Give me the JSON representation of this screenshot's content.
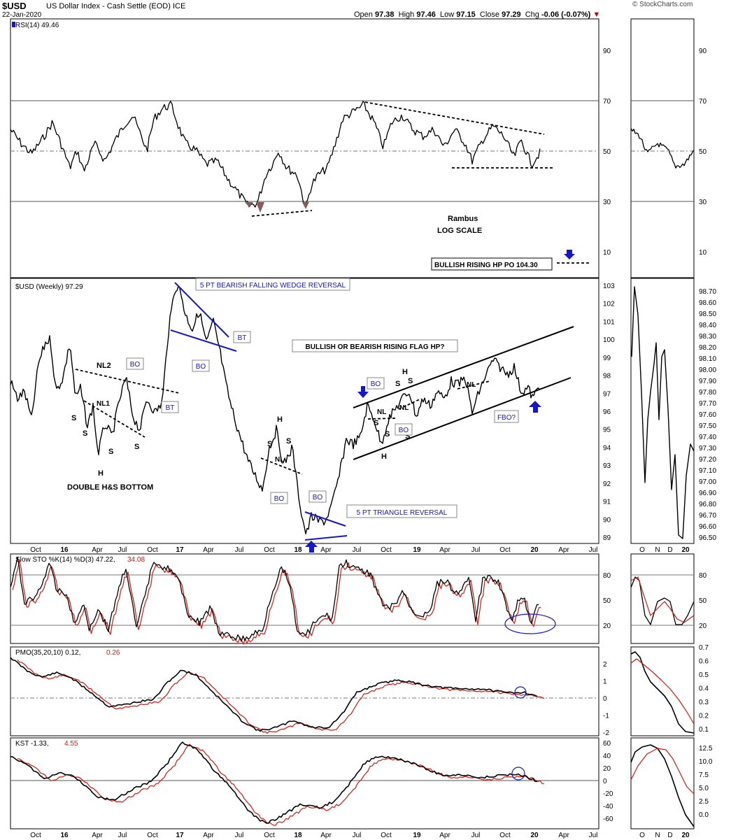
{
  "header": {
    "symbol": "$USD",
    "name": "US Dollar Index - Cash Settle (EOD) ICE",
    "date": "22-Jan-2020",
    "open": "97.38",
    "high": "97.46",
    "low": "97.15",
    "close": "97.29",
    "change": "-0.06 (-0.07%)",
    "brand": "© StockCharts.com"
  },
  "labels": {
    "open": "Open",
    "high": "High",
    "low": "Low",
    "close": "Close",
    "chg": "Chg"
  },
  "colors": {
    "price": "#000000",
    "signal": "#e0150f",
    "annotation_blue": "#1515d6",
    "grid": "#999999"
  },
  "main_x_ticks": [
    "Oct",
    "16",
    "Apr",
    "Jul",
    "Oct",
    "17",
    "Apr",
    "Jul",
    "Oct",
    "18",
    "Apr",
    "Jul",
    "Oct",
    "19",
    "Apr",
    "Jul",
    "Oct",
    "20",
    "Apr",
    "Jul"
  ],
  "zoom_x_ticks": [
    "O",
    "N",
    "D",
    "20"
  ],
  "panels": {
    "rsi": {
      "label": "RSI(14) 49.46",
      "ticks": [
        "90",
        "70",
        "50",
        "30",
        "10"
      ],
      "zoom_ticks": [
        "90",
        "70",
        "50",
        "30",
        "10"
      ]
    },
    "price": {
      "label": "$USD (Weekly) 97.29",
      "ticks": [
        "103",
        "102",
        "101",
        "100",
        "99",
        "98",
        "97",
        "96",
        "95",
        "94",
        "93",
        "92",
        "91",
        "90",
        "89"
      ],
      "zoom_ticks": [
        "98.70",
        "98.60",
        "98.50",
        "98.40",
        "98.30",
        "98.20",
        "98.10",
        "98.00",
        "97.90",
        "97.80",
        "97.70",
        "97.60",
        "97.50",
        "97.40",
        "97.30",
        "97.20",
        "97.10",
        "97.00",
        "96.90",
        "96.80",
        "96.70",
        "96.60",
        "96.50"
      ]
    },
    "sto": {
      "label": "Slow STO %K(14) %D(3) 47.22,",
      "label_red": "34.08",
      "ticks": [
        "80",
        "50",
        "20"
      ],
      "zoom_ticks": [
        "80",
        "50",
        "20"
      ]
    },
    "pmo": {
      "label": "PMO(35,20,10) 0.12,",
      "label_red": "0.26",
      "ticks": [
        "2",
        "1",
        "0",
        "-1",
        "-2"
      ],
      "zoom_ticks": [
        "0.7",
        "0.6",
        "0.5",
        "0.4",
        "0.3",
        "0.2",
        "0.1"
      ]
    },
    "kst": {
      "label": "KST -1.33,",
      "label_red": "4.55",
      "ticks": [
        "60",
        "40",
        "20",
        "0",
        "-20",
        "-40",
        "-60"
      ],
      "zoom_ticks": [
        "12.5",
        "10.0",
        "7.5",
        "5.0",
        "2.5",
        "0.0"
      ]
    }
  },
  "annotations": {
    "rambus": "Rambus",
    "log_scale": "LOG SCALE",
    "bullish_rising_hp": "BULLISH RISING HP PO 104.30",
    "wedge": "5 PT BEARISH FALLING WEDGE REVERSAL",
    "flag": "BULLISH OR BEARISH RISING FLAG HP?",
    "triangle": "5 PT TRIANGLE REVERSAL",
    "double_hs": "DOUBLE H&S BOTTOM",
    "nl2": "NL2",
    "nl1": "NL1",
    "nl": "NL",
    "s": "S",
    "h": "H",
    "bo": "BO",
    "bt": "BT",
    "fbo": "FBO?"
  },
  "chart_data": {
    "type": "line",
    "x": [
      "2015-09",
      "2016-01",
      "2016-04",
      "2016-07",
      "2016-10",
      "2017-01",
      "2017-04",
      "2017-07",
      "2017-10",
      "2018-01",
      "2018-04",
      "2018-07",
      "2018-10",
      "2019-01",
      "2019-04",
      "2019-07",
      "2019-10",
      "2020-01"
    ],
    "series": [
      {
        "name": "$USD (Weekly)",
        "values": [
          96.0,
          98.6,
          93.2,
          96.5,
          98.7,
          102.8,
          99.3,
          93.8,
          94.7,
          89.1,
          90.2,
          94.8,
          96.3,
          95.8,
          97.4,
          97.2,
          98.8,
          97.29
        ]
      },
      {
        "name": "RSI(14)",
        "values": [
          55,
          45,
          42,
          62,
          56,
          68,
          50,
          32,
          48,
          29,
          45,
          66,
          52,
          58,
          54,
          52,
          48,
          49.46
        ]
      }
    ],
    "ylim_price": [
      89,
      103
    ],
    "log_scale": true
  }
}
